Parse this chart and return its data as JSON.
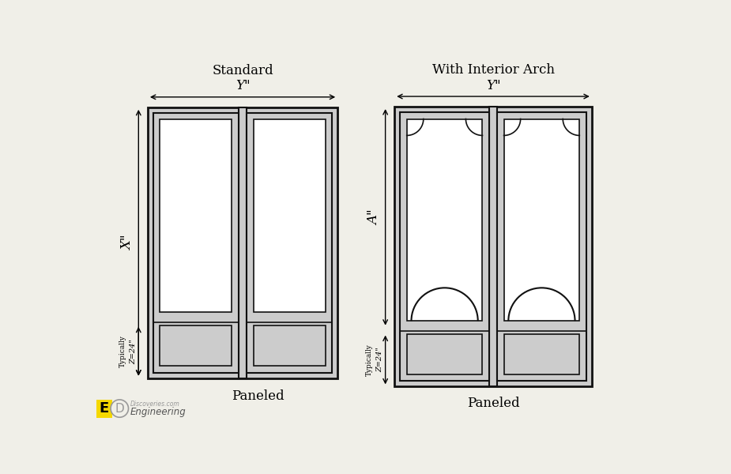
{
  "bg_color": "#f0efe8",
  "door_fill": "#cccccc",
  "door_edge": "#111111",
  "white_fill": "#ffffff",
  "title1": "Standard",
  "title2": "With Interior Arch",
  "label_Y": "Y\"",
  "label_X": "X\"",
  "label_Z": "Z=24\"",
  "label_Z2": "Typically",
  "label_A": "A\"",
  "label_paneled": "Paneled",
  "logo_text1": "Engineering",
  "logo_text2": "Discoveries.com",
  "logo_yellow": "#f5d800",
  "logo_gray": "#999999"
}
